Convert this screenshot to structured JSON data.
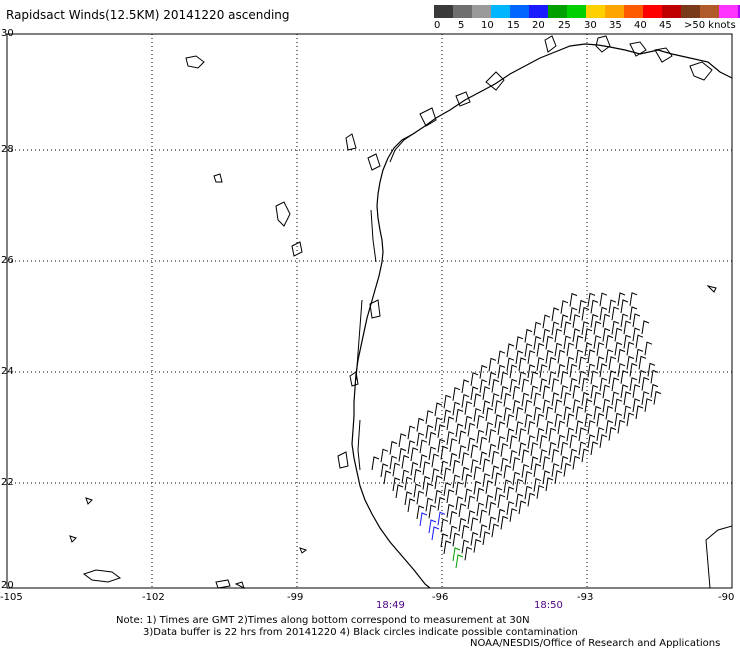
{
  "title": "Rapidsact Winds(12.5KM) 20141220 ascending",
  "legend": {
    "colors": [
      "#3a3a3a",
      "#6f6f6f",
      "#9a9a9a",
      "#00b7ff",
      "#0066ff",
      "#1a1aff",
      "#00a000",
      "#00d000",
      "#ffd000",
      "#ffa500",
      "#ff5a00",
      "#ff0000",
      "#c00000",
      "#7a3a1a",
      "#b05a2a",
      "#ff33ff",
      "#b000ff",
      "#6000c0"
    ],
    "labels": [
      "0",
      "5",
      "10",
      "15",
      "20",
      "25",
      "30",
      "35",
      "40",
      "45",
      ">50 knots"
    ]
  },
  "axes": {
    "lat_ticks": [
      "30",
      "28",
      "26",
      "24",
      "22",
      "20"
    ],
    "lon_ticks": [
      "-105",
      "-102",
      "-99",
      "-96",
      "-93",
      "-90"
    ]
  },
  "times": [
    "18:49",
    "18:50"
  ],
  "notes": {
    "line1": "Note: 1) Times are GMT 2)Times along bottom correspond to measurement at 30N",
    "line2": "3)Data buffer is 22 hrs from 20141220 4) Black circles indicate possible contamination",
    "line3": "NOAA/NESDIS/Office of Research and Applications"
  }
}
